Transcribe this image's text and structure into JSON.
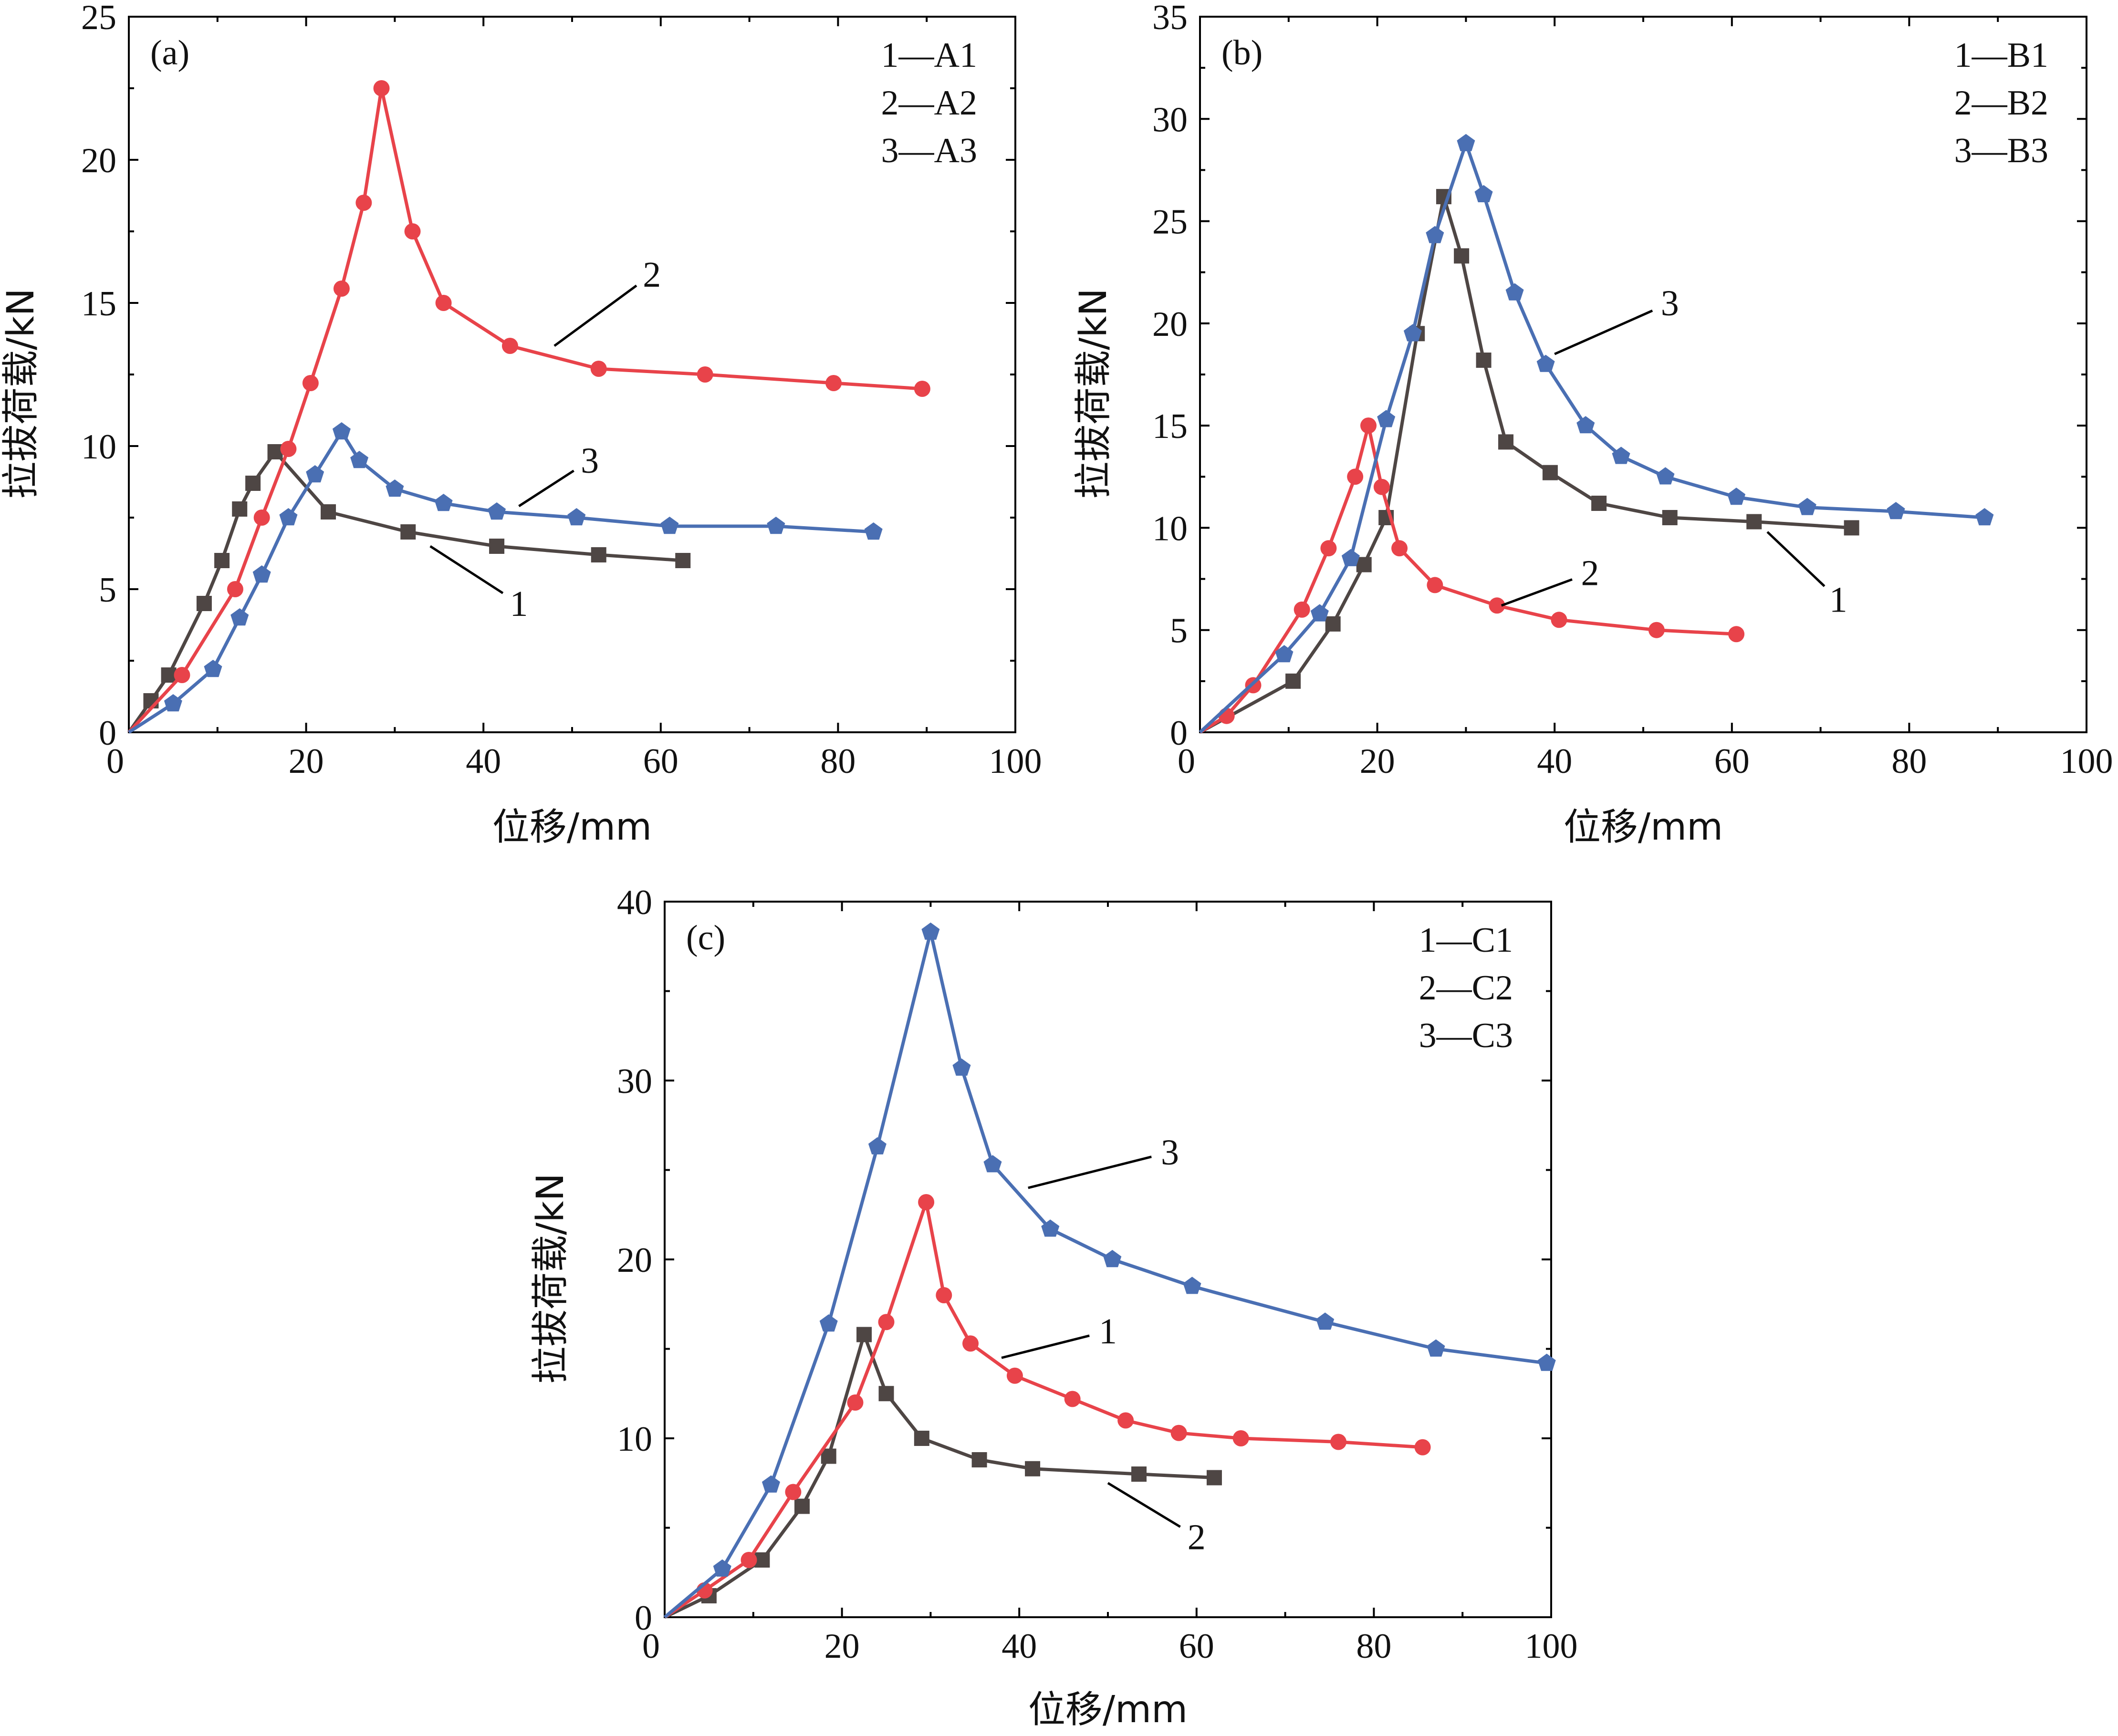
{
  "colors": {
    "series1": "#4e4644",
    "series2": "#e8434a",
    "series3": "#4a6fb3",
    "axis": "#000000"
  },
  "chart_data": [
    {
      "type": "line",
      "panel_label": "(a)",
      "xlabel": "位移/mm",
      "ylabel": "拉拔荷载/kN",
      "xlim": [
        0,
        100
      ],
      "ylim": [
        0,
        25
      ],
      "xticks": [
        0,
        20,
        40,
        60,
        80,
        100
      ],
      "yticks": [
        0,
        5,
        10,
        15,
        20,
        25
      ],
      "legend": [
        "1—A1",
        "2—A2",
        "3—A3"
      ],
      "legend_position": "top-right",
      "series": [
        {
          "label": "1",
          "marker": "square",
          "color": "#4e4644",
          "label_value": [
            44,
            4.5
          ],
          "anchor_value": [
            34,
            6.5
          ],
          "x": [
            0,
            2.5,
            4.5,
            8.5,
            10.5,
            12.5,
            14.0,
            16.5,
            22.5,
            31.5,
            41.5,
            53.0,
            62.5
          ],
          "y": [
            0,
            1.1,
            2.0,
            4.5,
            6.0,
            7.8,
            8.7,
            9.8,
            7.7,
            7.0,
            6.5,
            6.2,
            6.0
          ]
        },
        {
          "label": "2",
          "marker": "circle",
          "color": "#e8434a",
          "label_value": [
            59,
            16
          ],
          "anchor_value": [
            48,
            13.5
          ],
          "x": [
            0,
            6.0,
            12.0,
            15.0,
            18.0,
            20.5,
            24.0,
            26.5,
            28.5,
            32.0,
            35.5,
            43.0,
            53.0,
            65.0,
            79.5,
            89.5
          ],
          "y": [
            0,
            2.0,
            5.0,
            7.5,
            9.9,
            12.2,
            15.5,
            18.5,
            22.5,
            17.5,
            15.0,
            13.5,
            12.7,
            12.5,
            12.2,
            12.0
          ]
        },
        {
          "label": "3",
          "marker": "pentagon",
          "color": "#4a6fb3",
          "label_value": [
            52,
            9.5
          ],
          "anchor_value": [
            44,
            7.9
          ],
          "x": [
            0,
            5.0,
            9.5,
            12.5,
            15.0,
            18.0,
            21.0,
            24.0,
            26.0,
            30.0,
            35.5,
            41.5,
            50.5,
            61.0,
            73.0,
            84.0
          ],
          "y": [
            0,
            1.0,
            2.2,
            4.0,
            5.5,
            7.5,
            9.0,
            10.5,
            9.5,
            8.5,
            8.0,
            7.7,
            7.5,
            7.2,
            7.2,
            7.0
          ]
        }
      ]
    },
    {
      "type": "line",
      "panel_label": "(b)",
      "xlabel": "位移/mm",
      "ylabel": "拉拔荷载/kN",
      "xlim": [
        0,
        100
      ],
      "ylim": [
        0,
        35
      ],
      "xticks": [
        0,
        20,
        40,
        60,
        80,
        100
      ],
      "yticks": [
        0,
        5,
        10,
        15,
        20,
        25,
        30,
        35
      ],
      "legend": [
        "1—B1",
        "2—B2",
        "3—B3"
      ],
      "legend_position": "top-right",
      "series": [
        {
          "label": "1",
          "marker": "square",
          "color": "#4e4644",
          "label_value": [
            72,
            6.5
          ],
          "anchor_value": [
            64,
            9.8
          ],
          "x": [
            0,
            10.5,
            15.0,
            18.5,
            21.0,
            24.5,
            27.5,
            29.5,
            32.0,
            34.5,
            39.5,
            45.0,
            53.0,
            62.5,
            73.5
          ],
          "y": [
            0,
            2.5,
            5.3,
            8.2,
            10.5,
            19.5,
            26.2,
            23.3,
            18.2,
            14.2,
            12.7,
            11.2,
            10.5,
            10.3,
            10.0
          ]
        },
        {
          "label": "2",
          "marker": "circle",
          "color": "#e8434a",
          "label_value": [
            44,
            7.8
          ],
          "anchor_value": [
            34,
            6.2
          ],
          "x": [
            0,
            3.0,
            6.0,
            11.5,
            14.5,
            17.5,
            19.0,
            20.5,
            22.5,
            26.5,
            33.5,
            40.5,
            51.5,
            60.5
          ],
          "y": [
            0,
            0.8,
            2.3,
            6.0,
            9.0,
            12.5,
            15.0,
            12.0,
            9.0,
            7.2,
            6.2,
            5.5,
            5.0,
            4.8
          ]
        },
        {
          "label": "3",
          "marker": "pentagon",
          "color": "#4a6fb3",
          "label_value": [
            53,
            21
          ],
          "anchor_value": [
            40,
            18.5
          ],
          "x": [
            0,
            9.5,
            13.5,
            17.0,
            21.0,
            24.0,
            26.5,
            30.0,
            32.0,
            35.5,
            39.0,
            43.5,
            47.5,
            52.5,
            60.5,
            68.5,
            78.5,
            88.5
          ],
          "y": [
            0,
            3.8,
            5.8,
            8.5,
            15.3,
            19.5,
            24.3,
            28.8,
            26.3,
            21.5,
            18.0,
            15.0,
            13.5,
            12.5,
            11.5,
            11.0,
            10.8,
            10.5
          ]
        }
      ]
    },
    {
      "type": "line",
      "panel_label": "(c)",
      "xlabel": "位移/mm",
      "ylabel": "拉拔荷载/kN",
      "xlim": [
        0,
        100
      ],
      "ylim": [
        0,
        40
      ],
      "xticks": [
        0,
        20,
        40,
        60,
        80,
        100
      ],
      "yticks": [
        0,
        10,
        20,
        30,
        40
      ],
      "legend": [
        "1—C1",
        "2—C2",
        "3—C3"
      ],
      "legend_position": "top-right",
      "series": [
        {
          "label": "1",
          "marker": "square",
          "color": "#4e4644",
          "label_value": [
            50,
            16
          ],
          "anchor_value": [
            38,
            14.5
          ],
          "x": [
            0,
            5.0,
            11.0,
            15.5,
            18.5,
            22.5,
            25.0,
            29.0,
            35.5,
            41.5,
            53.5,
            62.0
          ],
          "y": [
            0,
            1.2,
            3.2,
            6.2,
            9.0,
            15.8,
            12.5,
            10.0,
            8.8,
            8.3,
            8.0,
            7.8
          ]
        },
        {
          "label": "2",
          "marker": "circle",
          "color": "#e8434a",
          "label_value": [
            60,
            4.5
          ],
          "anchor_value": [
            50,
            7.5
          ],
          "x": [
            0,
            4.5,
            9.5,
            14.5,
            21.5,
            25.0,
            29.5,
            31.5,
            34.5,
            39.5,
            46.0,
            52.0,
            58.0,
            65.0,
            76.0,
            85.5
          ],
          "y": [
            0,
            1.5,
            3.2,
            7.0,
            12.0,
            16.5,
            23.2,
            18.0,
            15.3,
            13.5,
            12.2,
            11.0,
            10.3,
            10.0,
            9.8,
            9.5
          ]
        },
        {
          "label": "3",
          "marker": "pentagon",
          "color": "#4a6fb3",
          "label_value": [
            57,
            26
          ],
          "anchor_value": [
            41,
            24.0
          ],
          "x": [
            0,
            6.5,
            12.0,
            18.5,
            24.0,
            30.0,
            33.5,
            37.0,
            43.5,
            50.5,
            59.5,
            74.5,
            87.0,
            99.5
          ],
          "y": [
            0,
            2.7,
            7.4,
            16.4,
            26.3,
            38.3,
            30.7,
            25.3,
            21.7,
            20.0,
            18.5,
            16.5,
            15.0,
            14.2
          ]
        }
      ]
    }
  ]
}
